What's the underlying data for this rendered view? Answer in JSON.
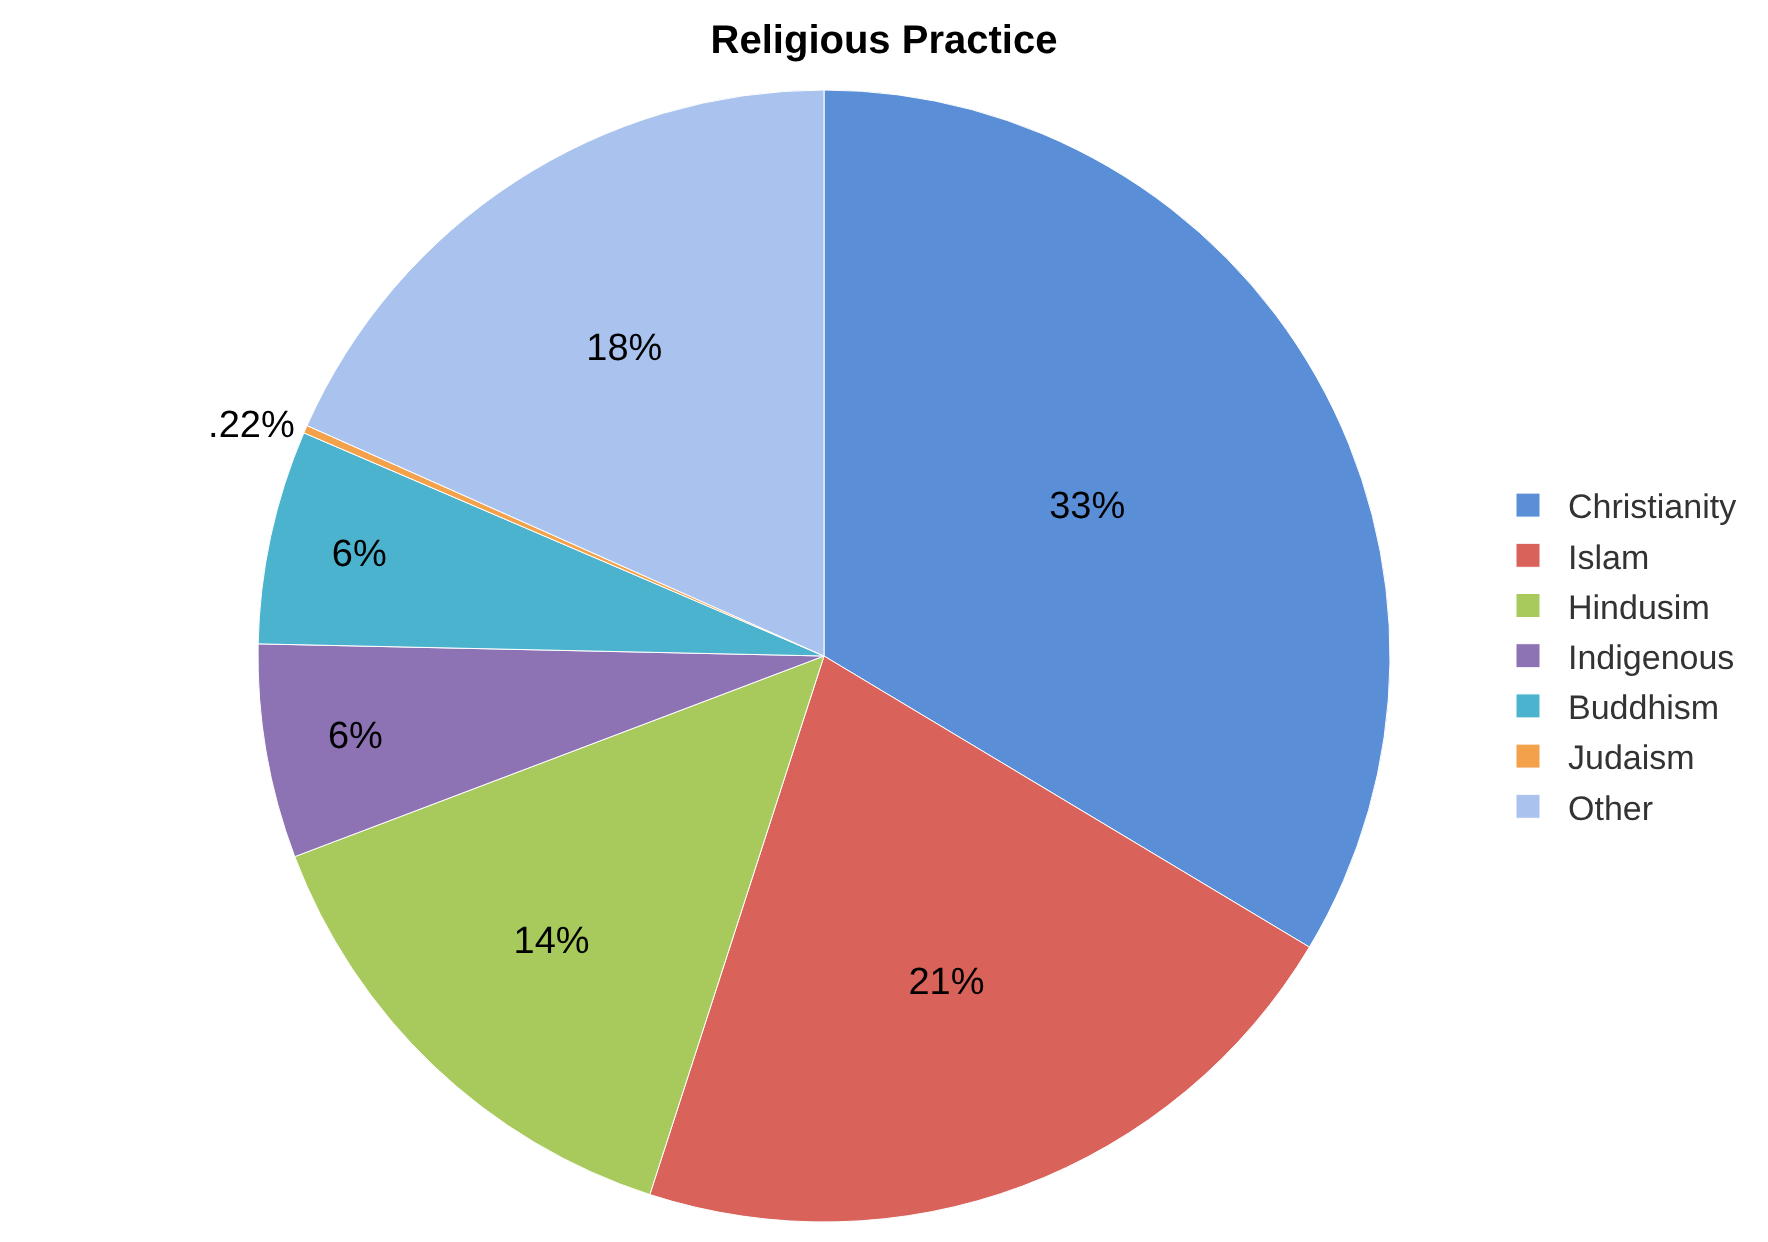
{
  "chart_data": {
    "type": "pie",
    "title": "Religious Practice",
    "categories": [
      "Christianity",
      "Islam",
      "Hindusim",
      "Indigenous",
      "Buddhism",
      "Judaism",
      "Other"
    ],
    "values": [
      33,
      21,
      14,
      6,
      6,
      0.22,
      18
    ],
    "value_labels": [
      "33%",
      "21%",
      "14%",
      "6%",
      "6%",
      ".22%",
      "18%"
    ],
    "colors": [
      "#5a8fd8",
      "#d9625b",
      "#a8c95c",
      "#8d72b4",
      "#4cb3cf",
      "#f3a14a",
      "#a9c3ee"
    ],
    "legend": "right"
  }
}
